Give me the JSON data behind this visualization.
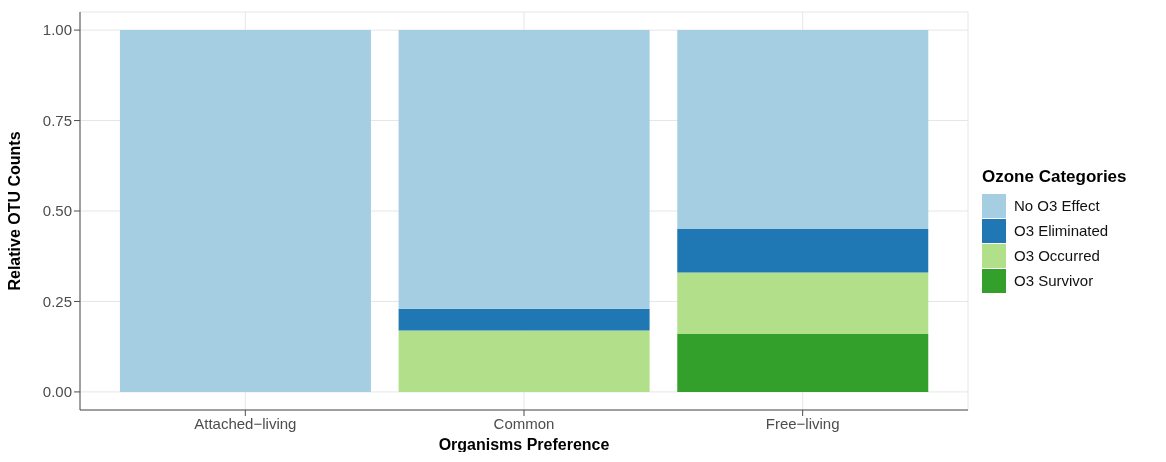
{
  "chart_data": {
    "type": "bar",
    "stacked": true,
    "xlabel": "Organisms Preference",
    "ylabel": "Relative OTU Counts",
    "legend_title": "Ozone Categories",
    "categories": [
      "Attached−living",
      "Common",
      "Free−living"
    ],
    "series": [
      {
        "name": "O3 Survivor",
        "color": "#33a02c",
        "values": [
          0,
          0,
          0.16
        ]
      },
      {
        "name": "O3 Occurred",
        "color": "#b2df8a",
        "values": [
          0,
          0.17,
          0.17
        ]
      },
      {
        "name": "O3 Eliminated",
        "color": "#1f78b4",
        "values": [
          0,
          0.06,
          0.12
        ]
      },
      {
        "name": "No O3 Effect",
        "color": "#a6cee3",
        "values": [
          1,
          0.77,
          0.55
        ]
      }
    ],
    "ylim": [
      -0.05,
      1.05
    ],
    "yticks": [
      {
        "value": 0,
        "label": "0.00"
      },
      {
        "value": 0.25,
        "label": "0.25"
      },
      {
        "value": 0.5,
        "label": "0.50"
      },
      {
        "value": 0.75,
        "label": "0.75"
      },
      {
        "value": 1,
        "label": "1.00"
      }
    ],
    "grid": true,
    "legend": "right"
  }
}
